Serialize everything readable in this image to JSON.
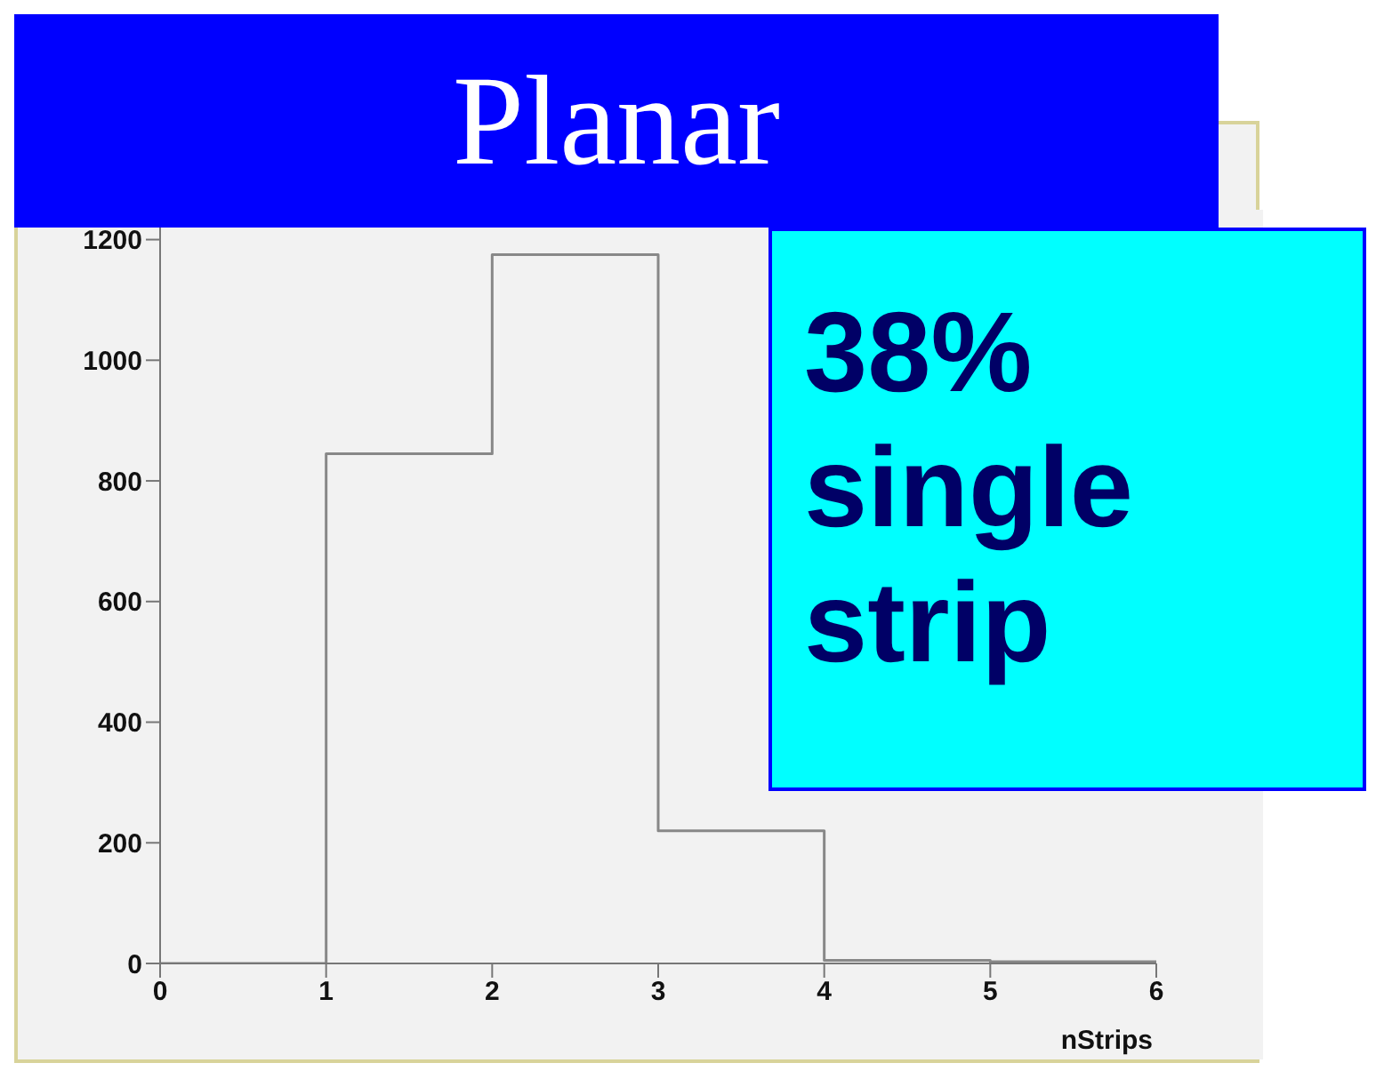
{
  "chart_data": {
    "type": "histogram",
    "title": "Planar",
    "xlabel": "nStrips",
    "annotations": [
      "38% single strip"
    ],
    "bins": [
      0,
      1,
      2,
      3,
      4,
      5,
      6
    ],
    "values": [
      0,
      845,
      1175,
      220,
      5,
      3
    ],
    "color": "#888888",
    "xlim": [
      0,
      6
    ],
    "xticks": [
      0,
      1,
      2,
      3,
      4,
      5,
      6
    ],
    "ylim": [
      0,
      1220
    ],
    "yticks": [
      0,
      200,
      400,
      600,
      800,
      1000,
      1200
    ],
    "grid": false,
    "legend": false
  }
}
